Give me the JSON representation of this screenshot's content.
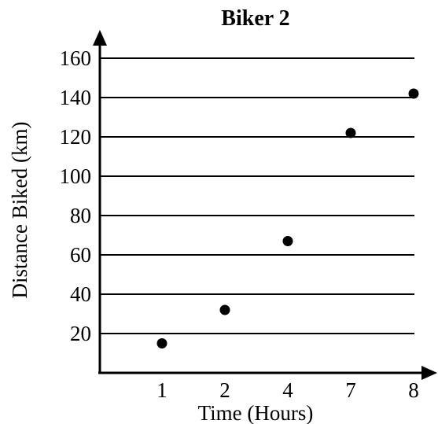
{
  "chart_data": {
    "type": "scatter",
    "title": "Biker 2",
    "xlabel": "Time (Hours)",
    "ylabel": "Distance Biked (km)",
    "categories": [
      "1",
      "2",
      "4",
      "7",
      "8"
    ],
    "x": [
      1,
      2,
      4,
      7,
      8
    ],
    "y": [
      15,
      32,
      67,
      122,
      142
    ],
    "ylim": [
      0,
      160
    ],
    "yticks": [
      20,
      40,
      60,
      80,
      100,
      120,
      140,
      160
    ],
    "grid": true
  }
}
